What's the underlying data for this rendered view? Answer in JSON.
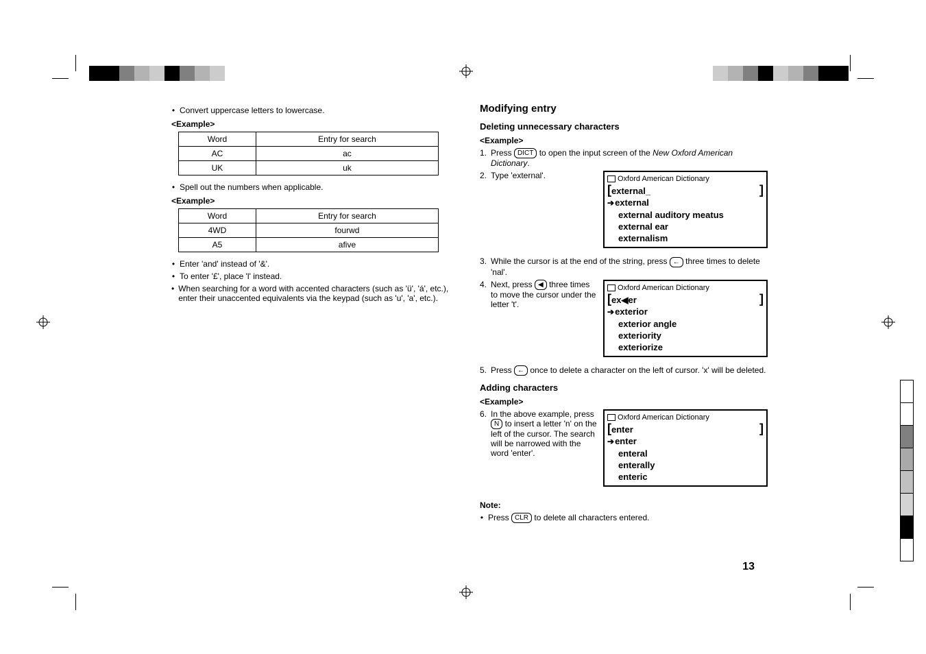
{
  "printers_marks": {
    "top_left_squares": [
      "#000000",
      "#000000",
      "#808080",
      "#b3b3b3",
      "#cccccc",
      "#000000",
      "#808080",
      "#b3b3b3",
      "#cccccc"
    ],
    "top_right_squares": [
      "#cccccc",
      "#b3b3b3",
      "#808080",
      "#000000",
      "#cccccc",
      "#b3b3b3",
      "#808080",
      "#000000",
      "#000000"
    ],
    "right_tabs": [
      "#ffffff",
      "#ffffff",
      "#808080",
      "#a9a9a9",
      "#c0c0c0",
      "#d3d3d3",
      "#000000",
      "#ffffff"
    ]
  },
  "left": {
    "bullets": [
      "Convert uppercase letters to lowercase.",
      "Spell out the numbers when applicable.",
      "Enter 'and' instead of '&'.",
      "To enter '£', place 'l' instead.",
      "When searching for a word with accented characters (such as 'ü', 'á', etc.), enter their unaccented equivalents via the keypad (such as 'u', 'a', etc.)."
    ],
    "example_label": "<Example>",
    "table1": {
      "headers": [
        "Word",
        "Entry for search"
      ],
      "rows": [
        [
          "AC",
          "ac"
        ],
        [
          "UK",
          "uk"
        ]
      ]
    },
    "table2": {
      "headers": [
        "Word",
        "Entry for search"
      ],
      "rows": [
        [
          "4WD",
          "fourwd"
        ],
        [
          "A5",
          "afive"
        ]
      ]
    }
  },
  "right": {
    "h2": "Modifying entry",
    "del_h3": "Deleting unnecessary characters",
    "example_label": "<Example>",
    "step1_pre": "1.",
    "step1_a": "Press ",
    "step1_key": "DICT",
    "step1_b": " to open the input screen of the ",
    "step1_i": "New Oxford American Dictionary",
    "step1_c": ".",
    "step2_pre": "2.",
    "step2_txt": "Type 'external'.",
    "lcd1": {
      "title": "Oxford American Dictionary",
      "input": "external_",
      "sel": "external",
      "entries": [
        "external auditory meatus",
        "external ear",
        "externalism"
      ]
    },
    "step3_pre": "3.",
    "step3_a": "While the cursor is at the end of the string, press ",
    "step3_key": "←",
    "step3_b": " three times to delete 'nal'.",
    "step4_pre": "4.",
    "step4_a": "Next, press ",
    "step4_key": "◀",
    "step4_b": " three times to move the cursor under the letter 't'.",
    "lcd2": {
      "title": "Oxford American Dictionary",
      "input_pre": "ex",
      "input_cursor": "◀",
      "input_post": "er",
      "sel": "exterior",
      "entries": [
        "exterior angle",
        "exteriority",
        "exteriorize"
      ]
    },
    "step5_pre": "5.",
    "step5_a": "Press ",
    "step5_key": "←",
    "step5_b": " once to delete a character on the left of cursor. 'x' will be deleted.",
    "add_h3": "Adding characters",
    "step6_pre": "6.",
    "step6_a": "In the above example, press ",
    "step6_key": "N",
    "step6_b": " to insert a letter 'n' on the left of the cursor. The search will be narrowed with the word 'enter'.",
    "lcd3": {
      "title": "Oxford American Dictionary",
      "input": "enter",
      "sel": "enter",
      "entries": [
        "enteral",
        "enterally",
        "enteric"
      ]
    },
    "note_label": "Note:",
    "note_a": "Press ",
    "note_key": "CLR",
    "note_b": " to delete all characters entered."
  },
  "page_number": "13"
}
